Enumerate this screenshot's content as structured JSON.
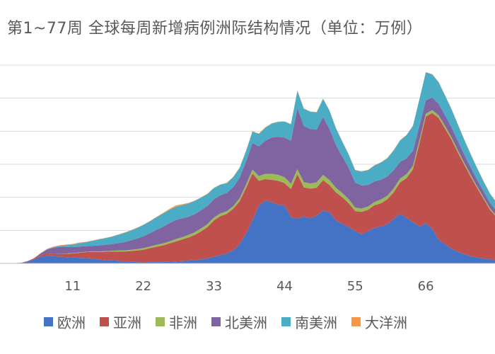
{
  "chart_data": {
    "type": "area",
    "stacked": true,
    "title": "第1~77周 全球每周新增病例洲际结构情况（单位：万例）",
    "x": [
      1,
      2,
      3,
      4,
      5,
      6,
      7,
      8,
      9,
      10,
      11,
      12,
      13,
      14,
      15,
      16,
      17,
      18,
      19,
      20,
      21,
      22,
      23,
      24,
      25,
      26,
      27,
      28,
      29,
      30,
      31,
      32,
      33,
      34,
      35,
      36,
      37,
      38,
      39,
      40,
      41,
      42,
      43,
      44,
      45,
      46,
      47,
      48,
      49,
      50,
      51,
      52,
      53,
      54,
      55,
      56,
      57,
      58,
      59,
      60,
      61,
      62,
      63,
      64,
      65,
      66,
      67,
      68,
      69,
      70,
      71,
      72,
      73,
      74,
      75,
      76,
      77
    ],
    "xticks": [
      11,
      22,
      33,
      44,
      55,
      66
    ],
    "xlim": [
      1,
      77
    ],
    "ylim": [
      0,
      600
    ],
    "yticks": [
      0,
      100,
      200,
      300,
      400,
      500,
      600
    ],
    "grid": true,
    "legend_position": "bottom",
    "series": [
      {
        "name": "欧洲",
        "color": "#4472C4",
        "values": [
          0,
          1,
          2,
          5,
          12,
          20,
          22,
          22,
          20,
          19,
          18,
          17,
          16,
          15,
          12,
          10,
          9,
          8,
          6,
          5,
          4,
          3,
          4,
          4,
          4,
          5,
          6,
          7,
          8,
          10,
          12,
          15,
          20,
          25,
          30,
          40,
          58,
          90,
          130,
          175,
          190,
          185,
          178,
          175,
          140,
          135,
          142,
          136,
          145,
          160,
          155,
          130,
          120,
          110,
          98,
          88,
          97,
          108,
          112,
          118,
          135,
          150,
          138,
          125,
          112,
          122,
          105,
          72,
          58,
          45,
          35,
          28,
          22,
          18,
          15,
          12,
          10
        ]
      },
      {
        "name": "亚洲",
        "color": "#C0504D",
        "values": [
          0,
          0,
          0,
          2,
          3,
          5,
          8,
          7,
          8,
          10,
          12,
          15,
          18,
          20,
          22,
          25,
          27,
          28,
          30,
          32,
          35,
          38,
          42,
          46,
          50,
          55,
          60,
          65,
          70,
          76,
          85,
          95,
          110,
          118,
          120,
          125,
          130,
          138,
          142,
          75,
          65,
          68,
          72,
          68,
          85,
          135,
          88,
          90,
          84,
          92,
          82,
          85,
          80,
          72,
          60,
          68,
          65,
          68,
          70,
          76,
          80,
          95,
          120,
          160,
          250,
          322,
          350,
          368,
          350,
          330,
          300,
          270,
          240,
          210,
          180,
          150,
          130
        ]
      },
      {
        "name": "非洲",
        "color": "#9BBB59",
        "values": [
          0,
          0,
          0,
          0,
          0,
          0,
          0,
          0,
          0,
          1,
          1,
          1,
          1,
          1,
          2,
          2,
          2,
          3,
          3,
          4,
          4,
          5,
          5,
          6,
          6,
          6,
          7,
          7,
          8,
          8,
          9,
          9,
          9,
          8,
          8,
          8,
          9,
          10,
          12,
          14,
          16,
          18,
          18,
          18,
          16,
          15,
          16,
          16,
          16,
          16,
          15,
          14,
          13,
          12,
          11,
          10,
          10,
          10,
          11,
          11,
          12,
          12,
          12,
          11,
          10,
          9,
          9,
          8,
          8,
          7,
          7,
          6,
          6,
          5,
          5,
          5,
          4
        ]
      },
      {
        "name": "北美洲",
        "color": "#8064A2",
        "values": [
          0,
          0,
          0,
          0,
          1,
          5,
          12,
          18,
          22,
          20,
          18,
          18,
          17,
          17,
          18,
          19,
          20,
          22,
          25,
          28,
          32,
          36,
          40,
          45,
          50,
          55,
          58,
          57,
          55,
          55,
          55,
          55,
          55,
          55,
          55,
          58,
          62,
          70,
          80,
          90,
          100,
          110,
          115,
          120,
          130,
          185,
          170,
          165,
          160,
          175,
          155,
          130,
          110,
          95,
          75,
          70,
          65,
          62,
          60,
          58,
          55,
          50,
          48,
          45,
          44,
          40,
          38,
          35,
          32,
          30,
          28,
          25,
          22,
          20,
          18,
          16,
          15
        ]
      },
      {
        "name": "南美洲",
        "color": "#4BACC6",
        "values": [
          0,
          0,
          0,
          0,
          0,
          0,
          1,
          2,
          3,
          5,
          8,
          10,
          12,
          15,
          18,
          20,
          22,
          25,
          28,
          30,
          32,
          34,
          36,
          38,
          40,
          40,
          40,
          40,
          40,
          40,
          38,
          36,
          34,
          32,
          30,
          30,
          30,
          32,
          35,
          38,
          40,
          42,
          45,
          48,
          50,
          52,
          52,
          52,
          52,
          55,
          55,
          50,
          45,
          40,
          38,
          42,
          45,
          48,
          52,
          55,
          60,
          65,
          70,
          75,
          80,
          85,
          70,
          65,
          60,
          55,
          50,
          45,
          40,
          35,
          30,
          28,
          25
        ]
      },
      {
        "name": "大洋洲",
        "color": "#F79646",
        "values": [
          0,
          0,
          0,
          0,
          0,
          1,
          1,
          2,
          2,
          2,
          2,
          2,
          1,
          1,
          1,
          1,
          1,
          1,
          1,
          1,
          1,
          1,
          1,
          1,
          2,
          3,
          4,
          3,
          2,
          1,
          1,
          1,
          1,
          1,
          1,
          1,
          1,
          1,
          1,
          1,
          1,
          1,
          1,
          1,
          1,
          1,
          1,
          1,
          1,
          1,
          1,
          1,
          1,
          1,
          1,
          1,
          1,
          1,
          1,
          1,
          1,
          1,
          1,
          1,
          1,
          1,
          1,
          1,
          1,
          1,
          1,
          1,
          1,
          1,
          1,
          1,
          1
        ]
      }
    ]
  }
}
